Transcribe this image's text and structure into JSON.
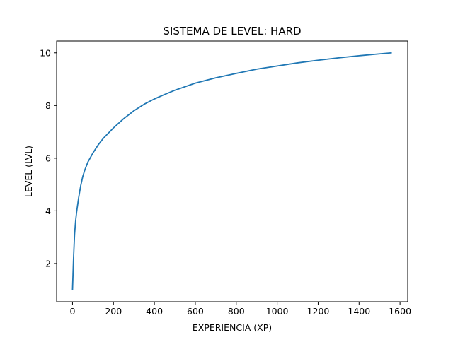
{
  "chart_data": {
    "type": "line",
    "title": "SISTEMA DE LEVEL: HARD",
    "xlabel": "EXPERIENCIA (XP)",
    "ylabel": "LEVEL (LVL)",
    "xlim": [
      -77.6,
      1637.6
    ],
    "ylim": [
      0.55,
      10.45
    ],
    "xticks": [
      0,
      200,
      400,
      600,
      800,
      1000,
      1200,
      1400,
      1600
    ],
    "yticks": [
      2,
      4,
      6,
      8,
      10
    ],
    "grid": false,
    "series": [
      {
        "color": "#1f77b4",
        "x": [
          0,
          5,
          10,
          15,
          20,
          30,
          40,
          50,
          60,
          75,
          100,
          125,
          150,
          175,
          200,
          250,
          300,
          350,
          400,
          450,
          500,
          600,
          700,
          800,
          900,
          1000,
          1100,
          1200,
          1300,
          1400,
          1500,
          1560
        ],
        "y": [
          1.0,
          2.2,
          3.1,
          3.6,
          3.95,
          4.5,
          4.95,
          5.3,
          5.55,
          5.85,
          6.2,
          6.5,
          6.75,
          6.95,
          7.15,
          7.5,
          7.8,
          8.05,
          8.25,
          8.42,
          8.58,
          8.85,
          9.05,
          9.22,
          9.38,
          9.5,
          9.62,
          9.72,
          9.81,
          9.89,
          9.96,
          10.0
        ]
      }
    ]
  }
}
